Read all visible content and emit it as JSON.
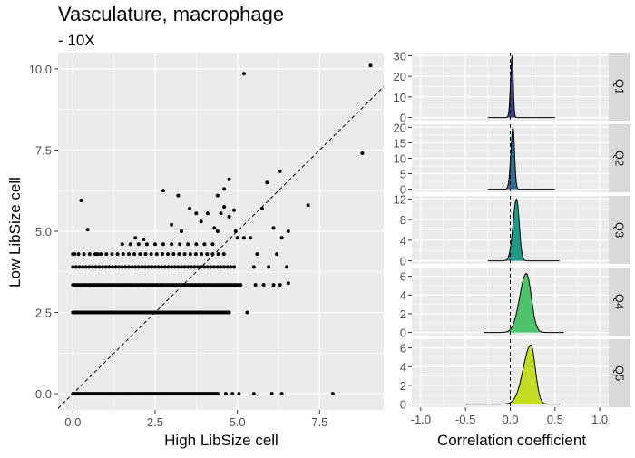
{
  "chart_data": [
    {
      "type": "scatter",
      "title": "Vasculature, macrophage",
      "subtitle": "- 10X",
      "xlabel": "High LibSize cell",
      "ylabel": "Low LibSize cell",
      "xlim": [
        -0.45,
        9.45
      ],
      "ylim": [
        -0.5,
        10.5
      ],
      "x_ticks": [
        0.0,
        2.5,
        5.0,
        7.5
      ],
      "x_tick_labels": [
        "0.0",
        "2.5",
        "5.0",
        "7.5"
      ],
      "y_ticks": [
        0.0,
        2.5,
        5.0,
        7.5,
        10.0
      ],
      "y_tick_labels": [
        "0.0",
        "2.5",
        "5.0",
        "7.5",
        "10.0"
      ],
      "grid": true,
      "reference_line": {
        "slope": 1,
        "intercept": 0,
        "style": "dashed"
      },
      "bands": [
        {
          "y": 0.0,
          "x_from": 0.0,
          "x_to": 4.4,
          "step": 0.05
        },
        {
          "y": 2.5,
          "x_from": 0.0,
          "x_to": 4.75,
          "step": 0.05
        },
        {
          "y": 3.35,
          "x_from": 0.0,
          "x_to": 5.1,
          "step": 0.07
        },
        {
          "y": 3.9,
          "x_from": 0.0,
          "x_to": 4.9,
          "step": 0.1
        },
        {
          "y": 4.3,
          "x_from": 0.0,
          "x_to": 4.6,
          "step": 0.17
        },
        {
          "y": 4.6,
          "x_from": 1.5,
          "x_to": 4.4,
          "step": 0.25
        }
      ],
      "points": [
        {
          "x": 0.05,
          "y": 4.3
        },
        {
          "x": 0.25,
          "y": 5.95
        },
        {
          "x": 0.45,
          "y": 5.05
        },
        {
          "x": 0.75,
          "y": 4.3
        },
        {
          "x": 1.9,
          "y": 4.8
        },
        {
          "x": 2.15,
          "y": 4.75
        },
        {
          "x": 2.75,
          "y": 6.25
        },
        {
          "x": 3.2,
          "y": 6.1
        },
        {
          "x": 3.0,
          "y": 5.2
        },
        {
          "x": 3.3,
          "y": 5.0
        },
        {
          "x": 3.55,
          "y": 5.7
        },
        {
          "x": 3.75,
          "y": 5.55
        },
        {
          "x": 3.9,
          "y": 5.3
        },
        {
          "x": 4.1,
          "y": 5.55
        },
        {
          "x": 4.3,
          "y": 5.1
        },
        {
          "x": 4.4,
          "y": 5.0
        },
        {
          "x": 4.5,
          "y": 5.55
        },
        {
          "x": 4.6,
          "y": 5.75
        },
        {
          "x": 4.75,
          "y": 5.45
        },
        {
          "x": 4.9,
          "y": 5.65
        },
        {
          "x": 4.4,
          "y": 6.1
        },
        {
          "x": 4.6,
          "y": 6.3
        },
        {
          "x": 4.75,
          "y": 6.6
        },
        {
          "x": 4.95,
          "y": 5.0
        },
        {
          "x": 5.0,
          "y": 4.8
        },
        {
          "x": 5.2,
          "y": 4.8
        },
        {
          "x": 5.2,
          "y": 9.85
        },
        {
          "x": 5.4,
          "y": 4.8
        },
        {
          "x": 5.5,
          "y": 3.9
        },
        {
          "x": 5.6,
          "y": 4.3
        },
        {
          "x": 5.75,
          "y": 5.7
        },
        {
          "x": 5.9,
          "y": 6.5
        },
        {
          "x": 6.1,
          "y": 5.1
        },
        {
          "x": 6.2,
          "y": 4.3
        },
        {
          "x": 6.35,
          "y": 4.8
        },
        {
          "x": 6.5,
          "y": 3.9
        },
        {
          "x": 6.55,
          "y": 3.4
        },
        {
          "x": 6.55,
          "y": 5.0
        },
        {
          "x": 6.3,
          "y": 6.85
        },
        {
          "x": 5.1,
          "y": 3.35
        },
        {
          "x": 5.3,
          "y": 2.5
        },
        {
          "x": 5.55,
          "y": 3.35
        },
        {
          "x": 5.8,
          "y": 3.35
        },
        {
          "x": 5.95,
          "y": 3.9
        },
        {
          "x": 6.1,
          "y": 3.35
        },
        {
          "x": 6.3,
          "y": 3.35
        },
        {
          "x": 7.15,
          "y": 5.8
        },
        {
          "x": 8.8,
          "y": 7.4
        },
        {
          "x": 9.05,
          "y": 10.1
        },
        {
          "x": 4.65,
          "y": 0.0
        },
        {
          "x": 4.85,
          "y": 0.0
        },
        {
          "x": 5.05,
          "y": 0.0
        },
        {
          "x": 5.5,
          "y": 0.0
        },
        {
          "x": 6.05,
          "y": 0.0
        },
        {
          "x": 6.35,
          "y": 0.0
        },
        {
          "x": 7.9,
          "y": 0.0
        }
      ]
    },
    {
      "type": "area",
      "subtype": "density-ridges",
      "xlabel": "Correlation coefficient",
      "xlim": [
        -1.1,
        1.1
      ],
      "x_ticks": [
        -1.0,
        -0.5,
        0.0,
        0.5,
        1.0
      ],
      "x_tick_labels": [
        "-1.0",
        "-0.5",
        "0.0",
        "0.5",
        "1.0"
      ],
      "reference_line": {
        "x": 0,
        "style": "dashed"
      },
      "facets": [
        {
          "name": "Q1",
          "color": "#3f3f87",
          "ylim": [
            -1.5,
            31.5
          ],
          "y_ticks": [
            0,
            10,
            20,
            30
          ],
          "y_tick_labels": [
            "0",
            "10",
            "20",
            "30"
          ],
          "peak_x": 0.02,
          "peak": 30,
          "sd": 0.013,
          "skew_left": 1.3,
          "x_range": [
            -0.25,
            0.5
          ]
        },
        {
          "name": "Q2",
          "color": "#2e6e8e",
          "ylim": [
            -1.0,
            21.0
          ],
          "y_ticks": [
            0,
            5,
            10,
            15,
            20
          ],
          "y_tick_labels": [
            "0",
            "5",
            "10",
            "15",
            "20"
          ],
          "peak_x": 0.03,
          "peak": 20,
          "sd": 0.018,
          "skew_left": 1.3,
          "x_range": [
            -0.25,
            0.5
          ]
        },
        {
          "name": "Q3",
          "color": "#1f9989",
          "ylim": [
            -0.6,
            12.6
          ],
          "y_ticks": [
            0,
            4,
            8,
            12
          ],
          "y_tick_labels": [
            "0",
            "4",
            "8",
            "12"
          ],
          "peak_x": 0.07,
          "peak": 12,
          "sd": 0.03,
          "skew_left": 1.3,
          "x_range": [
            -0.25,
            0.55
          ]
        },
        {
          "name": "Q4",
          "color": "#4ec36b",
          "ylim": [
            -0.33,
            6.93
          ],
          "y_ticks": [
            0,
            2,
            4,
            6
          ],
          "y_tick_labels": [
            "0",
            "2",
            "4",
            "6"
          ],
          "peak_x": 0.18,
          "peak": 6.3,
          "sd": 0.055,
          "skew_left": 1.35,
          "x_range": [
            -0.3,
            0.6
          ]
        },
        {
          "name": "Q5",
          "color": "#c2dd22",
          "ylim": [
            -0.33,
            6.93
          ],
          "y_ticks": [
            0,
            2,
            4,
            6
          ],
          "y_tick_labels": [
            "0",
            "2",
            "4",
            "6"
          ],
          "peak_x": 0.23,
          "peak": 6.3,
          "sd": 0.05,
          "skew_left": 1.7,
          "x_range": [
            -0.5,
            0.55
          ]
        }
      ]
    }
  ]
}
